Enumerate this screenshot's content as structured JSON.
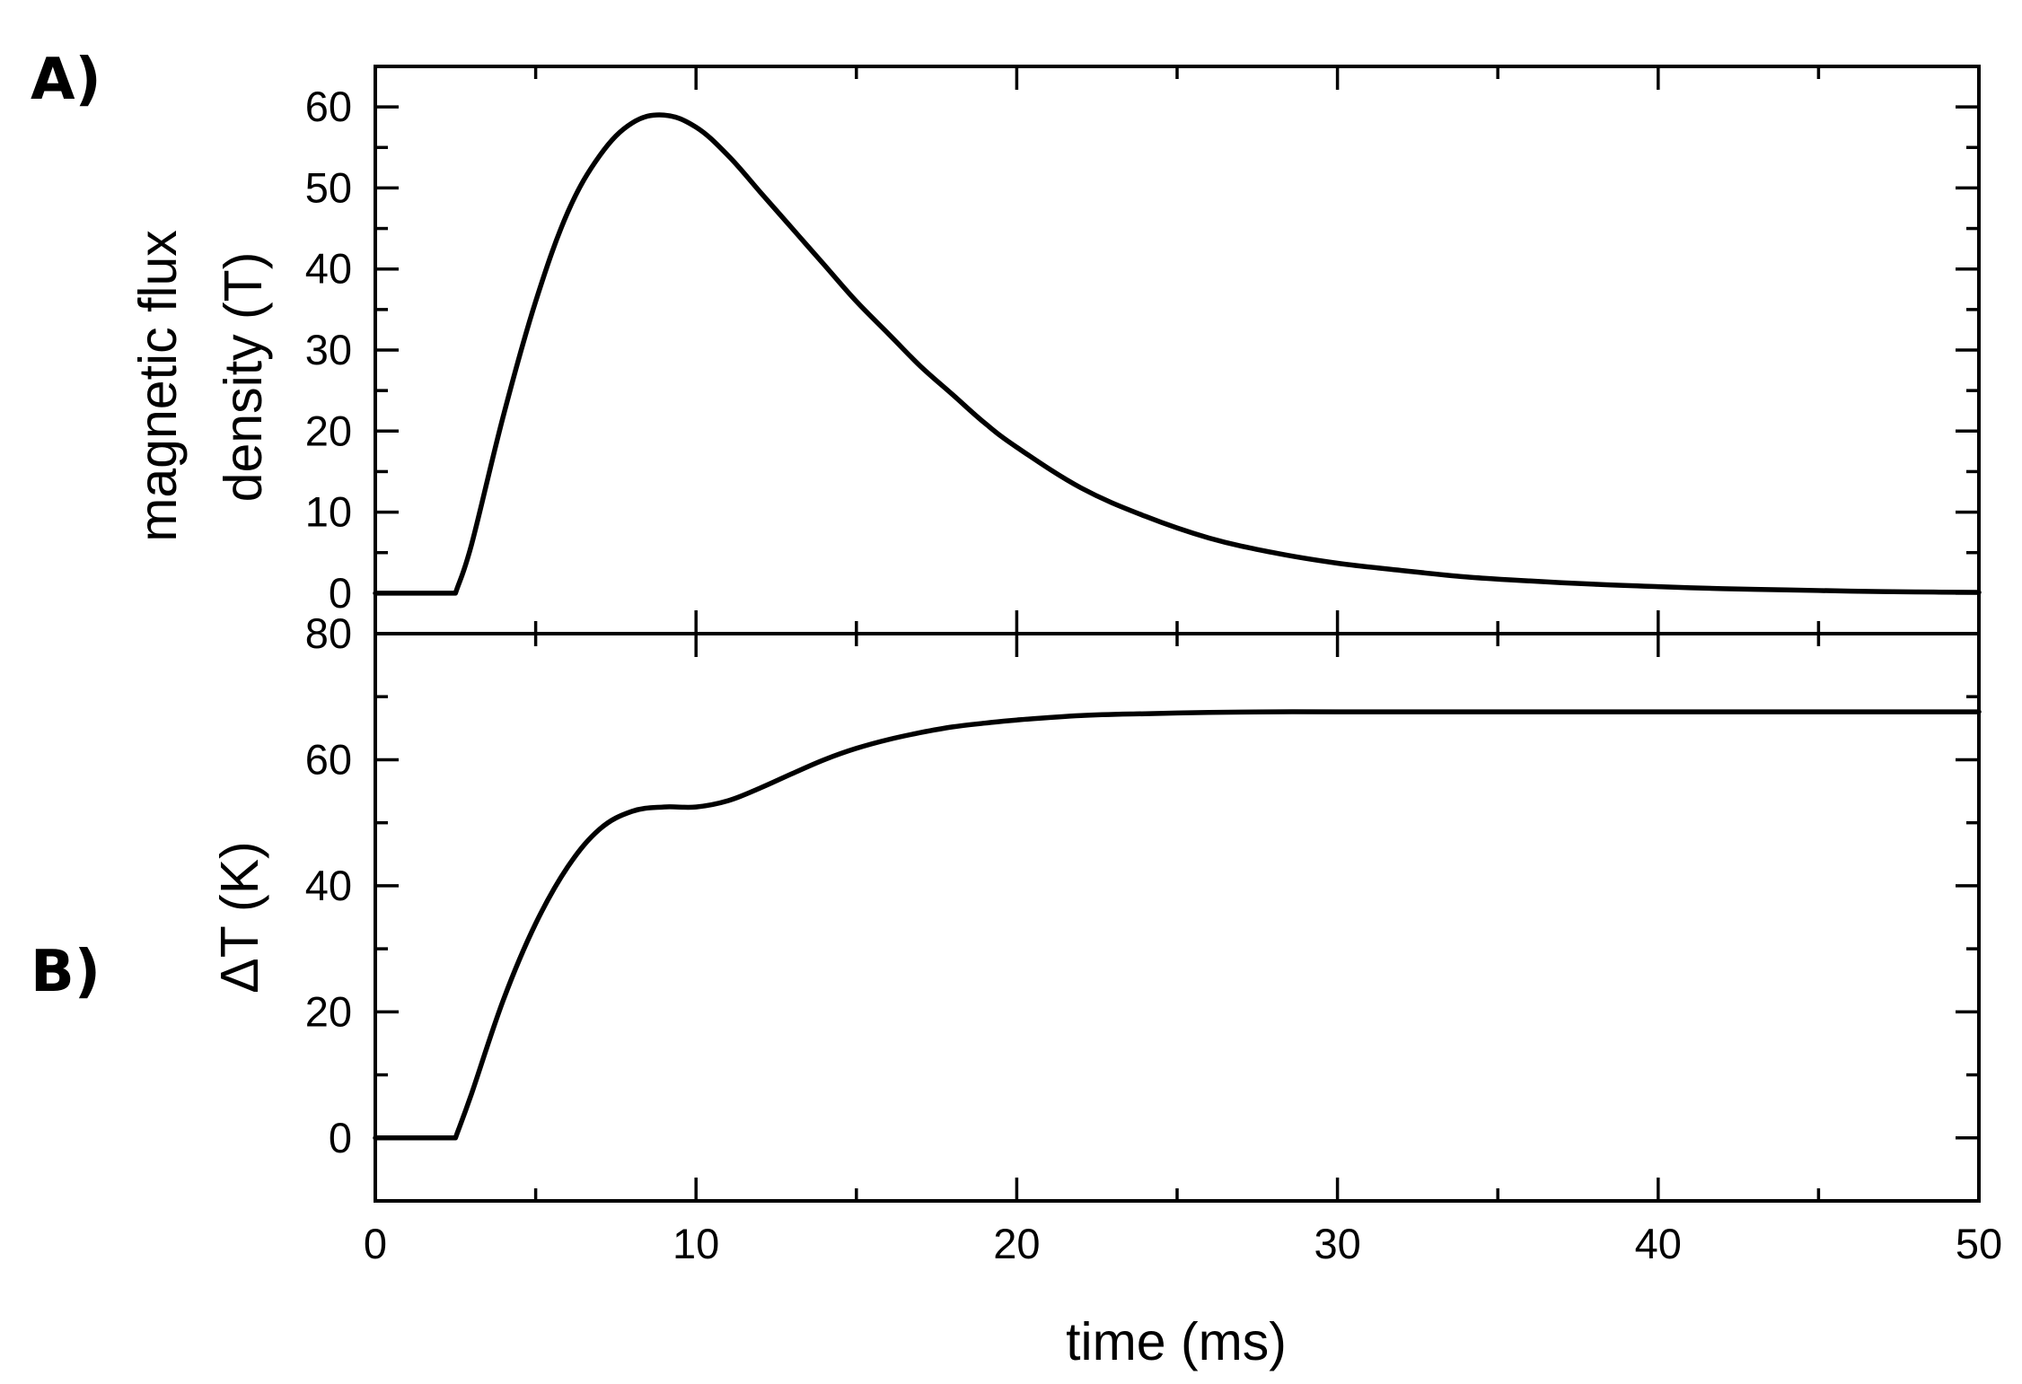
{
  "chart_data": [
    {
      "panel_label": "A)",
      "type": "line",
      "ylabel": [
        "magnetic flux",
        "density (T)"
      ],
      "xlim": [
        0,
        50
      ],
      "ylim": [
        -5,
        65
      ],
      "yticks": [
        0,
        10,
        20,
        30,
        40,
        50,
        60
      ],
      "series": [
        {
          "x": [
            0,
            2.5,
            3,
            4,
            5,
            6,
            7,
            8,
            9,
            10,
            11,
            12,
            13,
            14,
            15,
            16,
            17,
            18,
            19,
            20,
            22,
            24,
            26,
            28,
            30,
            32,
            34,
            36,
            38,
            40,
            42,
            44,
            46,
            48,
            50
          ],
          "y": [
            0,
            0,
            6,
            22,
            36,
            47,
            54,
            58,
            59,
            57.5,
            54,
            49.5,
            45,
            40.5,
            36,
            32,
            28,
            24.5,
            21,
            18,
            13,
            9.5,
            6.8,
            5,
            3.7,
            2.8,
            2,
            1.5,
            1.1,
            0.8,
            0.55,
            0.4,
            0.25,
            0.15,
            0.1
          ]
        }
      ]
    },
    {
      "panel_label": "B)",
      "type": "line",
      "ylabel": "ΔT (K)",
      "xlabel": "time (ms)",
      "xlim": [
        0,
        50
      ],
      "xticks": [
        0,
        10,
        20,
        30,
        40,
        50
      ],
      "ylim": [
        -10,
        80
      ],
      "yticks": [
        0,
        20,
        40,
        60,
        80
      ],
      "series": [
        {
          "x": [
            0,
            2.5,
            3,
            4,
            5,
            6,
            7,
            8,
            9,
            10,
            11,
            12,
            13,
            14,
            15,
            16,
            17,
            18,
            19,
            20,
            22,
            24,
            26,
            28,
            30,
            35,
            40,
            45,
            50
          ],
          "y": [
            0,
            0,
            7,
            22,
            34,
            43,
            49,
            51.8,
            52.5,
            52.5,
            53.5,
            55.5,
            57.8,
            60,
            61.8,
            63.2,
            64.3,
            65.2,
            65.8,
            66.3,
            67,
            67.3,
            67.5,
            67.6,
            67.6,
            67.6,
            67.6,
            67.6,
            67.6
          ]
        }
      ]
    }
  ]
}
